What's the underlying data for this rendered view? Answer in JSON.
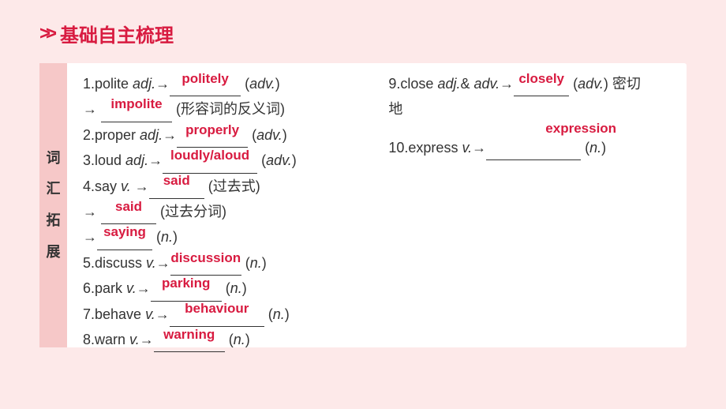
{
  "header": {
    "chevrons": ">>",
    "title": "基础自主梳理"
  },
  "sidebar": {
    "c1": "词",
    "c2": "汇",
    "c3": "拓",
    "c4": "展"
  },
  "left": {
    "e1_pre": "1.polite ",
    "e1_pos": "adj.",
    "e1_arrow": "→",
    "e1_ans": "politely",
    "e1_paren": "  (",
    "e1_type": "adv.",
    "e1_close": ")",
    "e1b_arrow": "→ ",
    "e1b_ans": "impolite",
    "e1b_note": "  (形容词的反义词)",
    "e2_pre": "2.proper ",
    "e2_pos": "adj.",
    "e2_arrow": "→",
    "e2_ans": "properly",
    "e2_paren": "  (",
    "e2_type": "adv.",
    "e2_close": ")",
    "e3_pre": "3.loud ",
    "e3_pos": "adj.",
    "e3_arrow": "→",
    "e3_ans": "loudly/aloud",
    "e3_paren": "  (",
    "e3_type": "adv.",
    "e3_close": ")",
    "e4_pre": "4.say ",
    "e4_pos": "v.",
    "e4_arrow": " →",
    "e4_ans": "said",
    "e4_note": "  (过去式)",
    "e4b_arrow": "→ ",
    "e4b_ans": "said",
    "e4b_note": "  (过去分词)",
    "e4c_arrow": "→",
    "e4c_ans": "saying",
    "e4c_paren": "  (",
    "e4c_type": "n.",
    "e4c_close": ")",
    "e5_pre": "5.discuss ",
    "e5_pos": "v.",
    "e5_arrow": "→",
    "e5_ans": "discussion",
    "e5_paren": "  (",
    "e5_type": "n.",
    "e5_close": ")",
    "e6_pre": "6.park ",
    "e6_pos": "v.",
    "e6_arrow": "→",
    "e6_ans": "parking",
    "e6_paren": "  (",
    "e6_type": "n.",
    "e6_close": ")",
    "e7_pre": "7.behave ",
    "e7_pos": "v.",
    "e7_arrow": "→",
    "e7_ans": "behaviour",
    "e7_paren": "  (",
    "e7_type": "n.",
    "e7_close": ")",
    "e8_pre": "8.warn ",
    "e8_pos": "v.",
    "e8_arrow": "→",
    "e8_ans": "warning",
    "e8_paren": "  (",
    "e8_type": "n.",
    "e8_close": ")"
  },
  "right": {
    "e9_pre": "9.close ",
    "e9_pos": "adj.",
    "e9_amp": "& ",
    "e9_pos2": "adv.",
    "e9_arrow": "→",
    "e9_ans": "closely",
    "e9_paren": "  (",
    "e9_type": "adv.",
    "e9_close": ")  密切",
    "e9_line2": "地",
    "expression": "expression",
    "e10_pre": "10.express ",
    "e10_pos": "v.",
    "e10_arrow": "→",
    "e10_paren": "  (",
    "e10_type": "n.",
    "e10_close": ")"
  },
  "colors": {
    "accent": "#d81b40",
    "page_bg": "#fde9e9",
    "sidebar_bg": "#f6c8c8",
    "content_bg": "#ffffff",
    "text": "#333333"
  }
}
